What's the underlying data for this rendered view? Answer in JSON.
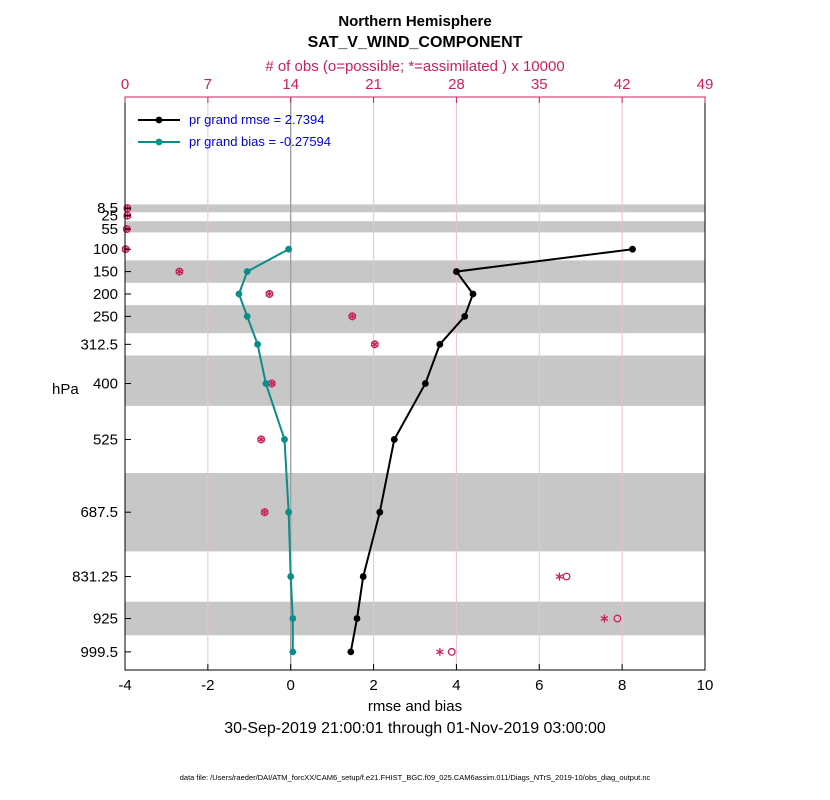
{
  "chart_data": {
    "type": "line",
    "title": "Northern Hemisphere",
    "subtitle": "SAT_V_WIND_COMPONENT",
    "top_axis_label": "# of obs (o=possible; *=assimilated ) x 10000",
    "xlabel": "rmse and bias",
    "ylabel": "hPa",
    "timespan": "30-Sep-2019 21:00:01 through 01-Nov-2019 03:00:00",
    "data_file": "data file: /Users/raeder/DAI/ATM_forcXX/CAM6_setup/f.e21.FHIST_BGC.f09_025.CAM6assim.011/Diags_NTrS_2019-10/obs_diag_output.nc",
    "x_bottom": {
      "min": -4,
      "max": 10,
      "ticks": [
        "-4",
        "-2",
        "0",
        "2",
        "4",
        "6",
        "8",
        "10"
      ]
    },
    "x_top": {
      "min": 0,
      "max": 49,
      "ticks": [
        "0",
        "7",
        "14",
        "21",
        "28",
        "35",
        "42",
        "49"
      ]
    },
    "y_axis": {
      "min": -240,
      "max": 1040,
      "tick_levels": [
        "8.5",
        "25",
        "55",
        "100",
        "150",
        "200",
        "250",
        "312.5",
        "400",
        "525",
        "687.5",
        "831.25",
        "925",
        "999.5"
      ]
    },
    "legend": [
      {
        "label": "pr grand rmse = 2.7394",
        "series": "rmse",
        "color": "#000000"
      },
      {
        "label": "pr grand bias = -0.27594",
        "series": "bias",
        "color": "#0d8c8c"
      }
    ],
    "series": [
      {
        "name": "rmse",
        "color": "#000000",
        "points": [
          [
            100,
            8.25
          ],
          [
            150,
            4.0
          ],
          [
            200,
            4.4
          ],
          [
            250,
            4.2
          ],
          [
            312.5,
            3.6
          ],
          [
            400,
            3.25
          ],
          [
            525,
            2.5
          ],
          [
            687.5,
            2.15
          ],
          [
            831.25,
            1.75
          ],
          [
            925,
            1.6
          ],
          [
            999.5,
            1.45
          ]
        ]
      },
      {
        "name": "bias",
        "color": "#0d8c8c",
        "points": [
          [
            100,
            -0.05
          ],
          [
            150,
            -1.05
          ],
          [
            200,
            -1.25
          ],
          [
            250,
            -1.05
          ],
          [
            312.5,
            -0.8
          ],
          [
            400,
            -0.6
          ],
          [
            525,
            -0.15
          ],
          [
            687.5,
            -0.05
          ],
          [
            831.25,
            0.0
          ],
          [
            925,
            0.05
          ],
          [
            999.5,
            0.05
          ]
        ]
      }
    ],
    "obs_counts": [
      {
        "level": 8.5,
        "possible": 0.2,
        "assimilated": 0.2
      },
      {
        "level": 25,
        "possible": 0.2,
        "assimilated": 0.2
      },
      {
        "level": 55,
        "possible": 0.15,
        "assimilated": 0.15
      },
      {
        "level": 100,
        "possible": 0.05,
        "assimilated": 0.05
      },
      {
        "level": 150,
        "possible": 4.6,
        "assimilated": 4.6
      },
      {
        "level": 200,
        "possible": 12.2,
        "assimilated": 12.2
      },
      {
        "level": 250,
        "possible": 19.2,
        "assimilated": 19.2
      },
      {
        "level": 312.5,
        "possible": 21.1,
        "assimilated": 21.1
      },
      {
        "level": 400,
        "possible": 12.4,
        "assimilated": 12.4
      },
      {
        "level": 525,
        "possible": 11.5,
        "assimilated": 11.5
      },
      {
        "level": 687.5,
        "possible": 11.8,
        "assimilated": 11.8
      },
      {
        "level": 831.25,
        "possible": 37.3,
        "assimilated": 36.7
      },
      {
        "level": 925,
        "possible": 41.6,
        "assimilated": 40.5
      },
      {
        "level": 999.5,
        "possible": 27.6,
        "assimilated": 26.6
      }
    ],
    "shaded_bands": [
      [
        0,
        17.5
      ],
      [
        37.5,
        62.5
      ],
      [
        125,
        175
      ],
      [
        225,
        287.5
      ],
      [
        337.5,
        450
      ],
      [
        600,
        775
      ],
      [
        887.5,
        962.5
      ]
    ],
    "colors": {
      "obs": "#cb2060",
      "grid": "#f0c0d2",
      "band": "#c7c7c7",
      "zero_line": "#999999",
      "legend_text": "#0000e0",
      "axis": "#000000"
    }
  }
}
